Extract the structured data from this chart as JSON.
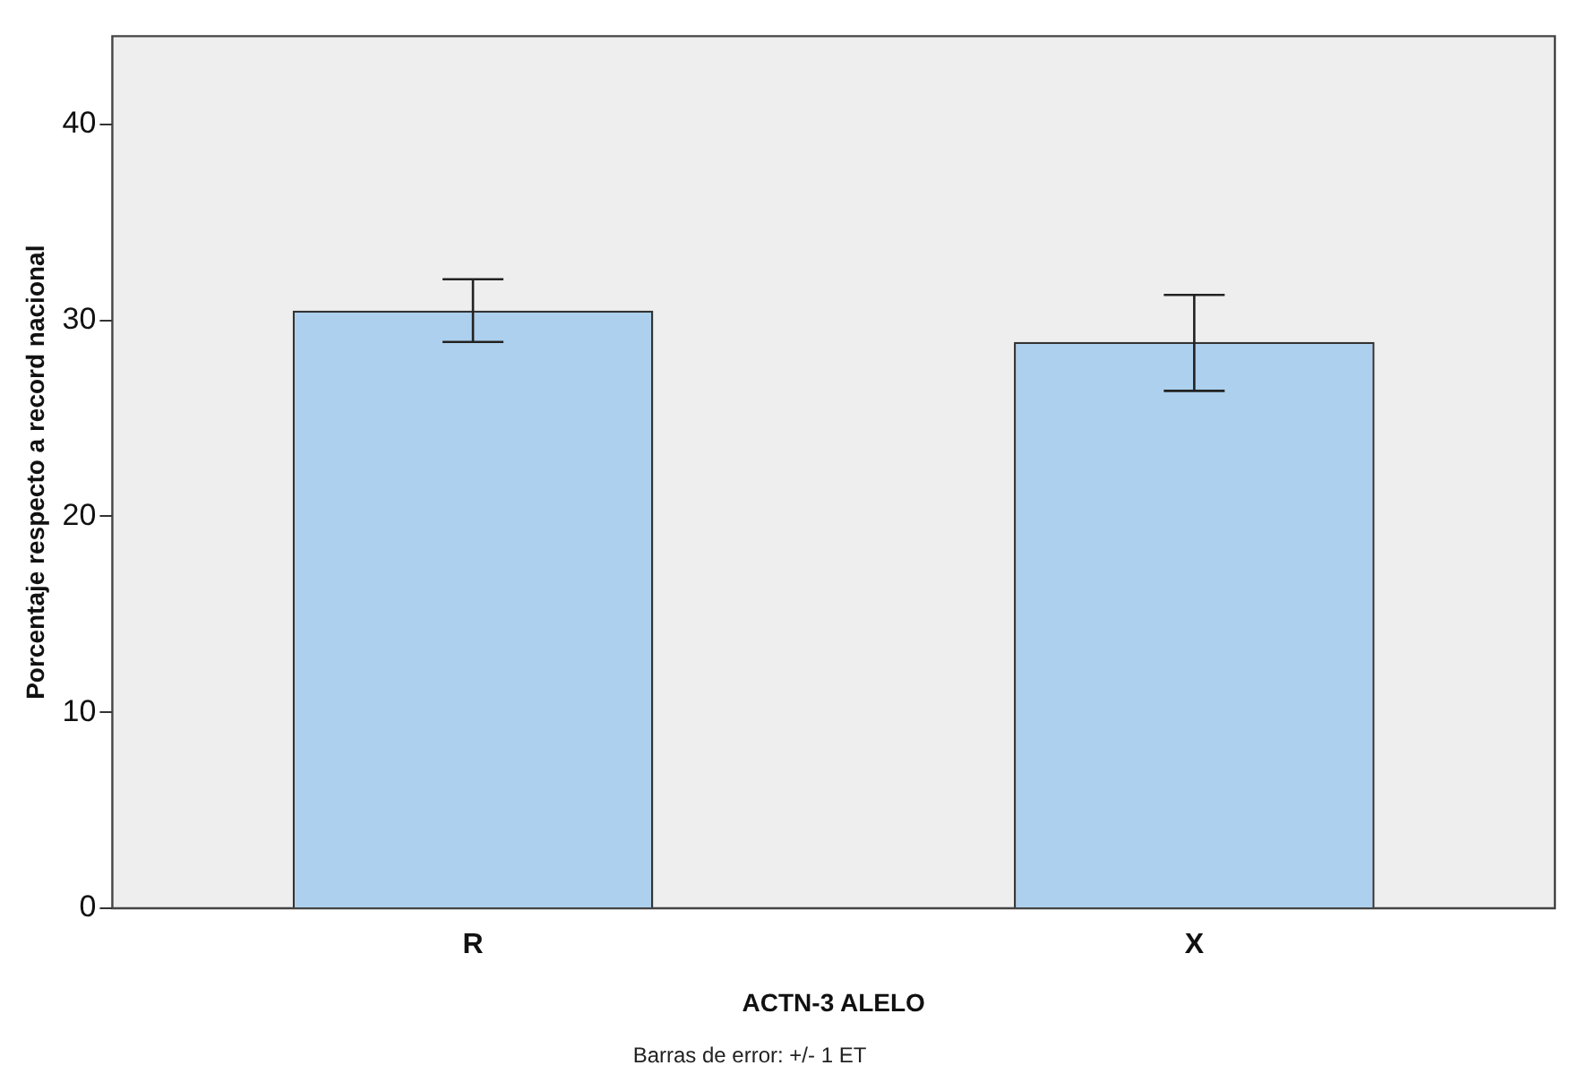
{
  "chart_data": {
    "type": "bar",
    "xlabel": "ACTN-3 ALELO",
    "ylabel": "Porcentaje respecto a record nacional",
    "annotations": [
      "Barras de error: +/- 1 ET"
    ],
    "categories": [
      "R",
      "X"
    ],
    "values": [
      30.5,
      28.9
    ],
    "errors": [
      [
        28.9,
        32.1
      ],
      [
        26.4,
        31.3
      ]
    ],
    "color": "#acd0ee",
    "ylim": [
      0,
      44.5
    ],
    "yticks": [
      0,
      10,
      20,
      30,
      40
    ],
    "grid": false,
    "legend": false
  }
}
